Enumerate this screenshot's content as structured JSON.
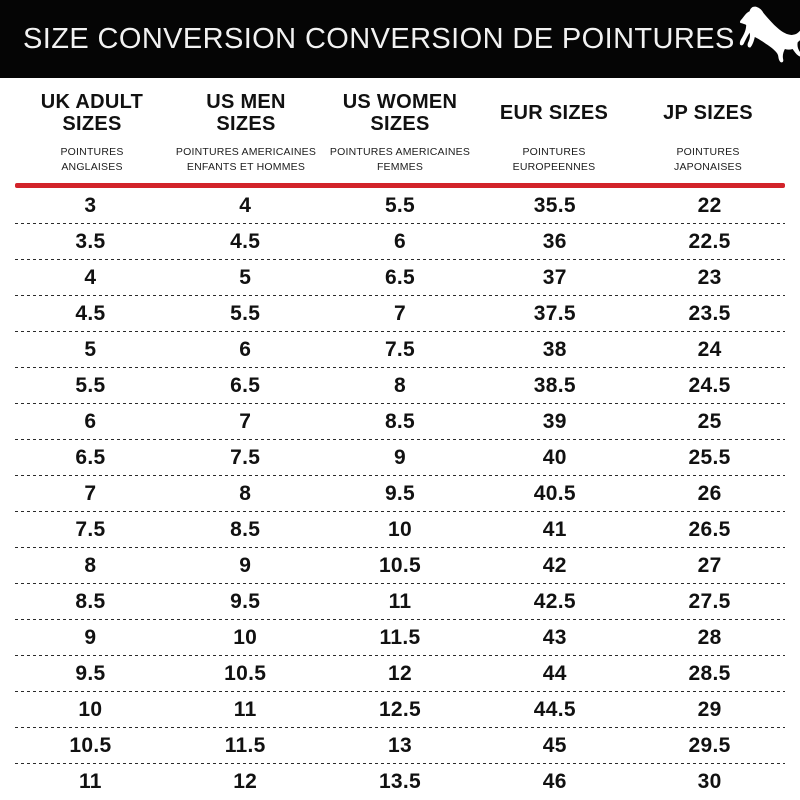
{
  "header": {
    "title": "SIZE CONVERSION CONVERSION DE POINTURES",
    "logo_icon": "puma-leaping-cat-logo"
  },
  "colors": {
    "topbar_bg": "#050505",
    "topbar_fg": "#f2f2f2",
    "accent_red": "#d2232a",
    "text": "#111111",
    "page_bg": "#ffffff"
  },
  "chart_data": {
    "type": "table",
    "title": "SIZE CONVERSION CONVERSION DE POINTURES",
    "columns": [
      {
        "title_lines": [
          "UK ADULT",
          "SIZES"
        ],
        "subtitle_lines": [
          "POINTURES",
          "ANGLAISES"
        ]
      },
      {
        "title_lines": [
          "US MEN",
          "SIZES"
        ],
        "subtitle_lines": [
          "POINTURES AMERICAINES",
          "ENFANTS ET HOMMES"
        ]
      },
      {
        "title_lines": [
          "US WOMEN",
          "SIZES"
        ],
        "subtitle_lines": [
          "POINTURES AMERICAINES",
          "FEMMES"
        ]
      },
      {
        "title_lines": [
          "EUR SIZES"
        ],
        "subtitle_lines": [
          "POINTURES",
          "EUROPEENNES"
        ]
      },
      {
        "title_lines": [
          "JP SIZES"
        ],
        "subtitle_lines": [
          "POINTURES",
          "JAPONAISES"
        ]
      }
    ],
    "rows": [
      [
        "3",
        "4",
        "5.5",
        "35.5",
        "22"
      ],
      [
        "3.5",
        "4.5",
        "6",
        "36",
        "22.5"
      ],
      [
        "4",
        "5",
        "6.5",
        "37",
        "23"
      ],
      [
        "4.5",
        "5.5",
        "7",
        "37.5",
        "23.5"
      ],
      [
        "5",
        "6",
        "7.5",
        "38",
        "24"
      ],
      [
        "5.5",
        "6.5",
        "8",
        "38.5",
        "24.5"
      ],
      [
        "6",
        "7",
        "8.5",
        "39",
        "25"
      ],
      [
        "6.5",
        "7.5",
        "9",
        "40",
        "25.5"
      ],
      [
        "7",
        "8",
        "9.5",
        "40.5",
        "26"
      ],
      [
        "7.5",
        "8.5",
        "10",
        "41",
        "26.5"
      ],
      [
        "8",
        "9",
        "10.5",
        "42",
        "27"
      ],
      [
        "8.5",
        "9.5",
        "11",
        "42.5",
        "27.5"
      ],
      [
        "9",
        "10",
        "11.5",
        "43",
        "28"
      ],
      [
        "9.5",
        "10.5",
        "12",
        "44",
        "28.5"
      ],
      [
        "10",
        "11",
        "12.5",
        "44.5",
        "29"
      ],
      [
        "10.5",
        "11.5",
        "13",
        "45",
        "29.5"
      ],
      [
        "11",
        "12",
        "13.5",
        "46",
        "30"
      ]
    ]
  }
}
